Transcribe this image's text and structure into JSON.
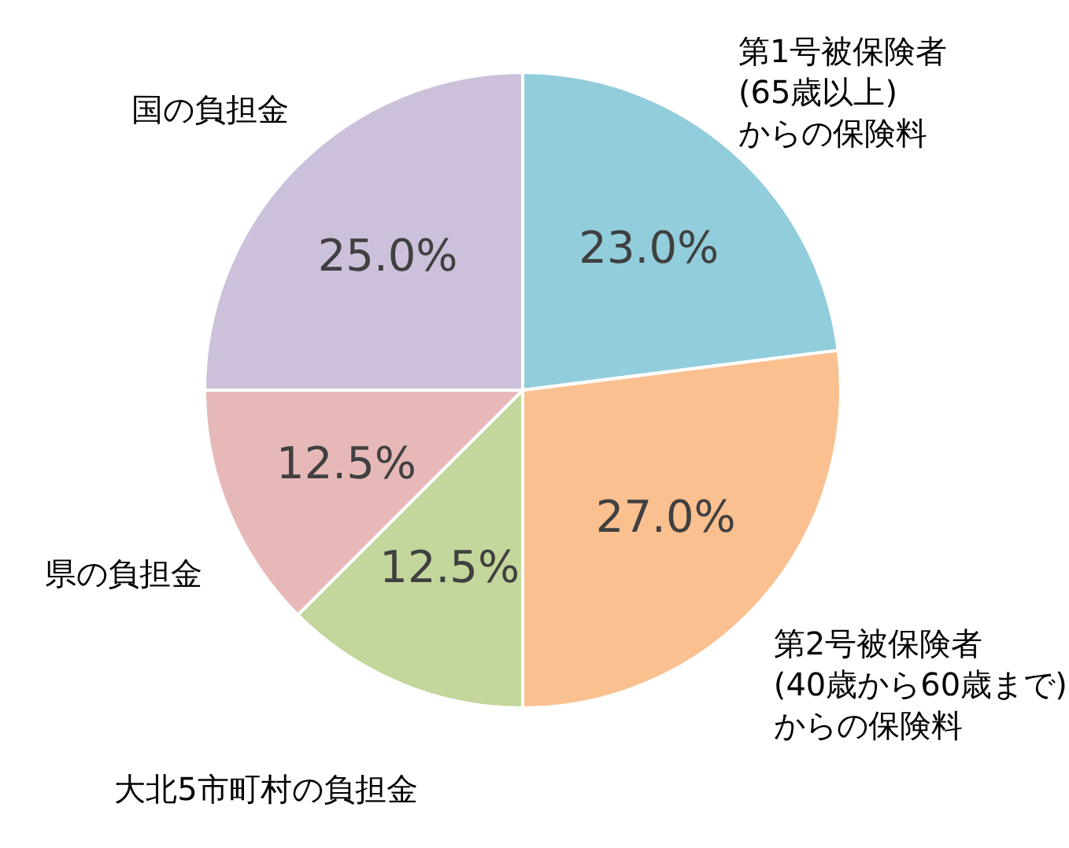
{
  "chart_data": {
    "type": "pie",
    "categories": [
      "第1号被保険者\n(65歳以上)\nからの保険料",
      "第2号被保険者\n(40歳から60歳まで)\nからの保険料",
      "大北5市町村の負担金",
      "県の負担金",
      "国の負担金"
    ],
    "values": [
      23.0,
      27.0,
      12.5,
      12.5,
      25.0
    ],
    "value_labels": [
      "23.0%",
      "27.0%",
      "12.5%",
      "12.5%",
      "25.0%"
    ],
    "colors": [
      "#92cddc",
      "#fac090",
      "#c3d69b",
      "#e6b9b8",
      "#ccc0da"
    ]
  }
}
